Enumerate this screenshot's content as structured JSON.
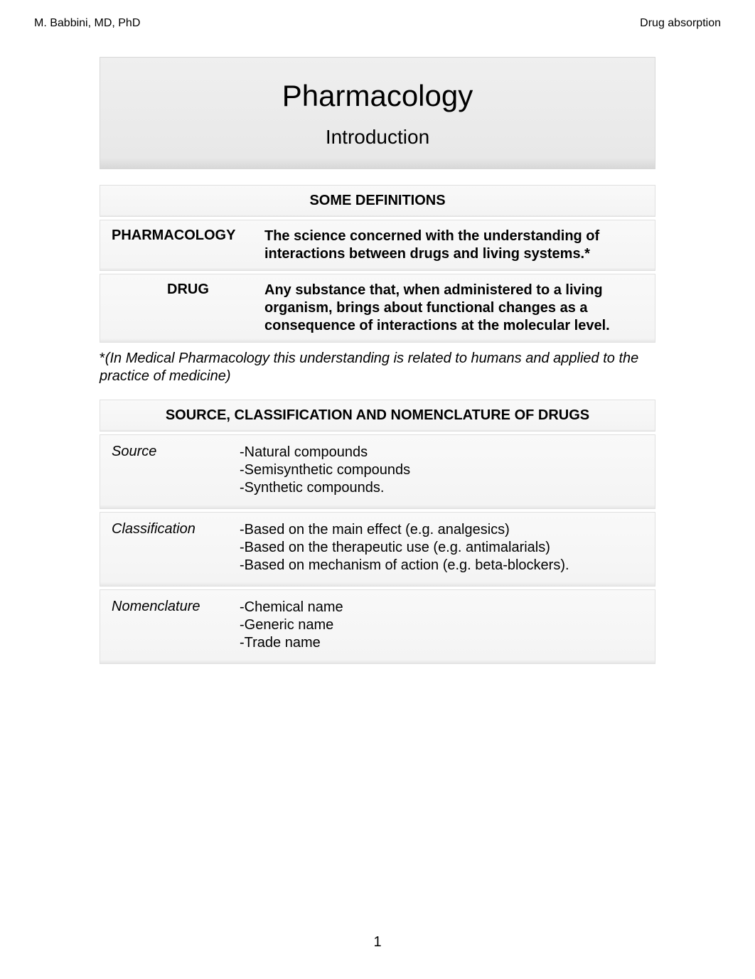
{
  "header": {
    "left": "M. Babbini, MD, PhD",
    "right": "Drug absorption"
  },
  "title": {
    "main": "Pharmacology",
    "subtitle": "Introduction"
  },
  "definitions": {
    "heading": "SOME DEFINITIONS",
    "rows": [
      {
        "term": "PHARMACOLOGY",
        "body": "The science concerned with the understanding of interactions between drugs and living systems.*",
        "term_centered": false
      },
      {
        "term": "DRUG",
        "body": "Any substance that, when administered to a living organism, brings about functional changes as a consequence of interactions at the molecular level.",
        "term_centered": true
      }
    ]
  },
  "footnote": {
    "asterisk": "*",
    "text": "(In Medical Pharmacology this understanding is related to humans and applied to the practice of medicine)"
  },
  "scn": {
    "heading": "SOURCE, CLASSIFICATION AND NOMENCLATURE OF DRUGS",
    "rows": [
      {
        "term": "Source",
        "lines": [
          "-Natural compounds",
          "-Semisynthetic compounds",
          "-Synthetic compounds."
        ]
      },
      {
        "term": "Classification",
        "lines": [
          "-Based on the main effect (e.g. analgesics)",
          "-Based on the therapeutic use (e.g. antimalarials)",
          "-Based on mechanism of action (e.g. beta-blockers)."
        ]
      },
      {
        "term": "Nomenclature",
        "lines": [
          "-Chemical name",
          "-Generic name",
          "-Trade name"
        ]
      }
    ]
  },
  "page_number": "1",
  "colors": {
    "page_bg": "#ffffff",
    "panel_bg_top": "#f9f9f9",
    "panel_bg_bottom": "#e6e6e6",
    "title_panel_bg": "#e8e8e8",
    "border": "#e0e0e0",
    "text": "#000000"
  },
  "typography": {
    "body_font": "Arial",
    "header_size_pt": 12,
    "title_main_size_pt": 32,
    "title_sub_size_pt": 21,
    "section_header_size_pt": 15,
    "body_size_pt": 15,
    "page_number_size_pt": 15
  }
}
